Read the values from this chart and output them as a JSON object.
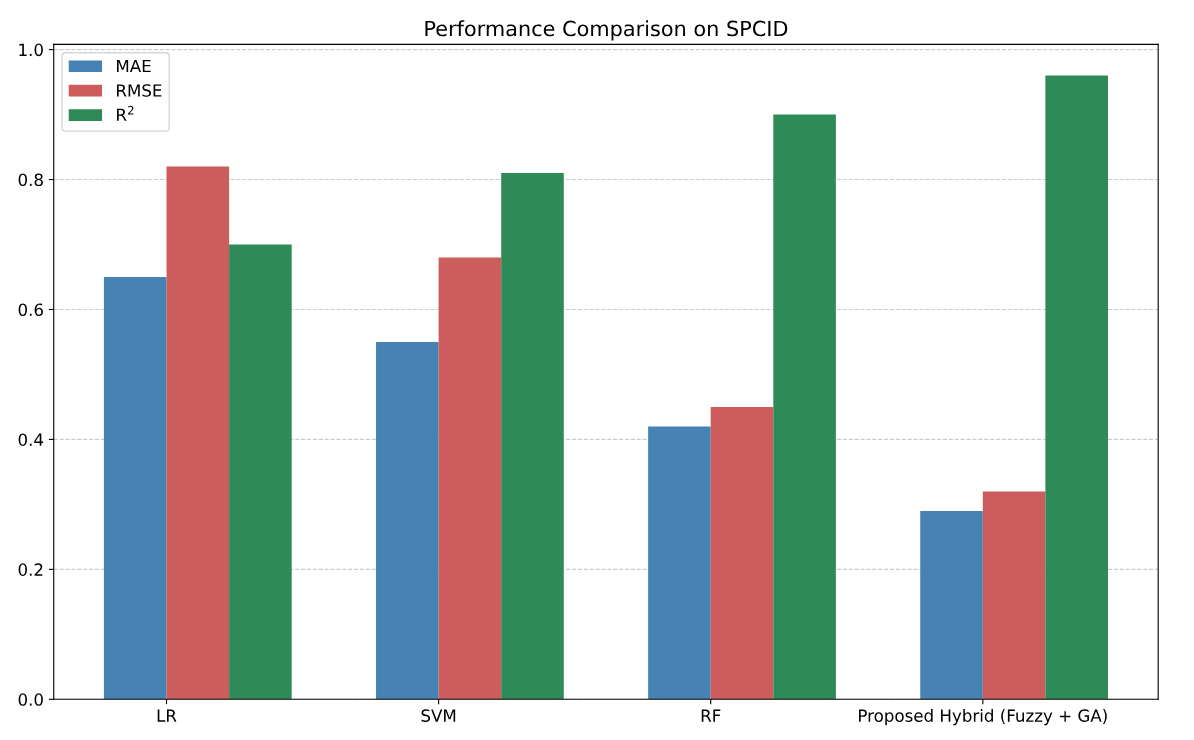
{
  "chart_data": {
    "type": "bar",
    "title": "Performance Comparison on SPCID",
    "categories": [
      "LR",
      "SVM",
      "RF",
      "Proposed Hybrid (Fuzzy + GA)"
    ],
    "series": [
      {
        "name": "MAE",
        "color": "#4682b4",
        "values": [
          0.65,
          0.55,
          0.42,
          0.29
        ]
      },
      {
        "name": "RMSE",
        "color": "#cd5c5c",
        "values": [
          0.82,
          0.68,
          0.45,
          0.32
        ]
      },
      {
        "name": "R$^{2}$",
        "color": "#2e8b57",
        "values": [
          0.7,
          0.81,
          0.9,
          0.96
        ]
      }
    ],
    "ylim": [
      0,
      1.008
    ],
    "yticks": [
      {
        "value": 0,
        "label": "0.0"
      },
      {
        "value": 0.2,
        "label": "0.2"
      },
      {
        "value": 0.4,
        "label": "0.4"
      },
      {
        "value": 0.6,
        "label": "0.6"
      },
      {
        "value": 0.8,
        "label": "0.8"
      },
      {
        "value": 1,
        "label": "1.0"
      }
    ],
    "grid": "y",
    "legend": "top left"
  }
}
